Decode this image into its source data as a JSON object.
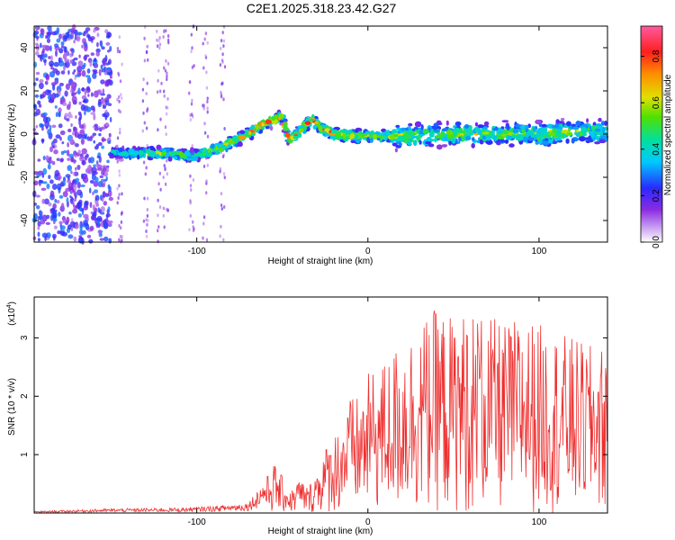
{
  "figure_title": "C2E1.2025.318.23.42.G27",
  "chart_data": [
    {
      "type": "heatmap",
      "xlabel": "Height of straight line (km)",
      "ylabel": "Frequency (Hz)",
      "xlim": [
        -195,
        140
      ],
      "ylim": [
        -50,
        50
      ],
      "xticks": [
        -100,
        0,
        100
      ],
      "yticks": [
        -40,
        -20,
        0,
        20,
        40
      ],
      "colorbar": {
        "label": "Normalized spectral amplitude",
        "range": [
          0,
          0.93
        ],
        "ticks": [
          0.0,
          0.2,
          0.4,
          0.6,
          0.8
        ]
      },
      "ridge": {
        "x": [
          -195,
          -160,
          -140,
          -120,
          -100,
          -85,
          -75,
          -60,
          -50,
          -46,
          -40,
          -33,
          -28,
          -20,
          -10,
          0,
          20,
          40,
          60,
          80,
          100,
          120,
          140
        ],
        "frequency_hz": [
          -8,
          -8,
          -9,
          -9,
          -10,
          -6,
          -2,
          5,
          8,
          -3,
          1,
          7,
          3,
          0,
          -1,
          -1,
          -1,
          0,
          0,
          0,
          0,
          1,
          1
        ],
        "peak_amplitude": [
          0.3,
          0.35,
          0.5,
          0.6,
          0.6,
          0.7,
          0.75,
          0.8,
          0.75,
          0.85,
          0.7,
          0.8,
          0.85,
          0.8,
          0.75,
          0.7,
          0.65,
          0.6,
          0.65,
          0.6,
          0.65,
          0.6,
          0.55
        ]
      },
      "noise_region_x": [
        -195,
        -150
      ]
    },
    {
      "type": "line",
      "xlabel": "Height of straight line (km)",
      "ylabel": "SNR (10 * v/v)",
      "yscale_label": "(x10",
      "yscale_exp": "4",
      "xlim": [
        -195,
        140
      ],
      "ylim": [
        0,
        3.7
      ],
      "xticks": [
        -100,
        0,
        100
      ],
      "yticks": [
        1,
        2,
        3
      ],
      "series": [
        {
          "name": "SNR",
          "color": "#ee3030",
          "x": [
            -195,
            -150,
            -110,
            -90,
            -70,
            -62,
            -55,
            -50,
            -45,
            -40,
            -35,
            -30,
            -25,
            -20,
            -15,
            -10,
            -5,
            0,
            10,
            20,
            30,
            40,
            50,
            60,
            70,
            80,
            90,
            100,
            110,
            120,
            130,
            140
          ],
          "values": [
            0.02,
            0.05,
            0.06,
            0.08,
            0.12,
            0.35,
            0.7,
            0.5,
            0.3,
            0.5,
            0.35,
            0.6,
            0.9,
            1.1,
            1.3,
            1.6,
            1.6,
            1.9,
            2.1,
            2.4,
            2.6,
            2.8,
            2.7,
            2.8,
            2.7,
            2.6,
            2.7,
            2.6,
            2.5,
            2.4,
            2.3,
            2.3
          ]
        }
      ]
    }
  ],
  "colors": {
    "axis": "#000000",
    "line": "#ee3030"
  }
}
